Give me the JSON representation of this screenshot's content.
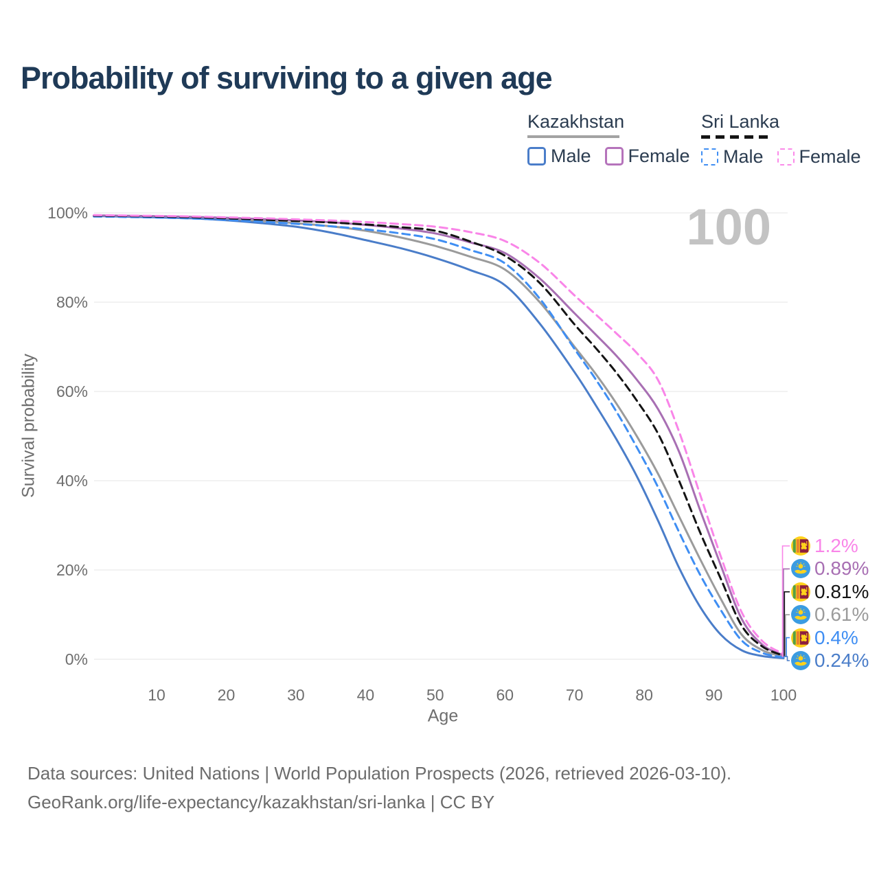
{
  "title": "Probability of surviving to a given age",
  "watermark": "100",
  "legend": {
    "groups": [
      {
        "key": "kazakhstan",
        "label": "Kazakhstan",
        "line": "solid",
        "items": [
          {
            "key": "kz_male",
            "label": "Male",
            "color": "#4a7dc9",
            "line": "solid"
          },
          {
            "key": "kz_female",
            "label": "Female",
            "color": "#b573bb",
            "line": "solid"
          }
        ]
      },
      {
        "key": "sri_lanka",
        "label": "Sri Lanka",
        "line": "dashed",
        "items": [
          {
            "key": "sl_male",
            "label": "Male",
            "color": "#3f8ef3",
            "line": "dashed"
          },
          {
            "key": "sl_female",
            "label": "Female",
            "color": "#fb8ae9",
            "line": "dashed"
          }
        ]
      }
    ]
  },
  "chart_data": {
    "type": "line",
    "title": "Probability of surviving to a given age",
    "xlabel": "Age",
    "ylabel": "Survival probability",
    "xlim": [
      1,
      100
    ],
    "ylim": [
      0,
      100
    ],
    "grid": "horizontal",
    "xticks": [
      10,
      20,
      30,
      40,
      50,
      60,
      70,
      80,
      90,
      100
    ],
    "yticks": [
      {
        "value": 0,
        "label": "0%"
      },
      {
        "value": 20,
        "label": "20%"
      },
      {
        "value": 40,
        "label": "40%"
      },
      {
        "value": 60,
        "label": "60%"
      },
      {
        "value": 80,
        "label": "80%"
      },
      {
        "value": 100,
        "label": "100%"
      }
    ],
    "x": [
      1,
      5,
      10,
      15,
      20,
      25,
      30,
      35,
      40,
      45,
      50,
      55,
      60,
      65,
      70,
      73,
      76,
      79,
      82,
      85,
      88,
      91,
      94,
      97,
      100
    ],
    "series": [
      {
        "key": "kz_total",
        "name": "Kazakhstan (both sexes)",
        "country": "Kazakhstan",
        "line": "solid",
        "color": "#9b9b9b",
        "end_label": "0.61%",
        "values": [
          99.36,
          99.27,
          99.12,
          98.95,
          98.6,
          98.2,
          97.7,
          97.0,
          96.0,
          94.5,
          92.6,
          90.2,
          87.3,
          80.0,
          70.0,
          64.0,
          57.3,
          49.8,
          41.5,
          32.0,
          22.5,
          13.5,
          5.5,
          2.0,
          0.61
        ]
      },
      {
        "key": "kz_male",
        "name": "Kazakhstan Male",
        "country": "Kazakhstan",
        "line": "solid",
        "color": "#4a7dc9",
        "end_label": "0.24%",
        "values": [
          99.3,
          99.18,
          99.0,
          98.78,
          98.35,
          97.72,
          96.9,
          95.6,
          93.9,
          92.1,
          89.9,
          87.2,
          83.8,
          75.2,
          64.3,
          57.0,
          49.3,
          40.8,
          31.0,
          20.5,
          11.8,
          5.5,
          2.0,
          0.7,
          0.24
        ]
      },
      {
        "key": "kz_female",
        "name": "Kazakhstan Female",
        "country": "Kazakhstan",
        "line": "solid",
        "color": "#a86fb3",
        "end_label": "0.89%",
        "values": [
          99.45,
          99.37,
          99.27,
          99.12,
          98.9,
          98.62,
          98.3,
          97.9,
          97.3,
          96.5,
          95.4,
          93.4,
          91.0,
          85.3,
          77.5,
          72.8,
          68.0,
          62.5,
          56.0,
          46.5,
          33.5,
          21.0,
          9.0,
          3.2,
          0.89
        ]
      },
      {
        "key": "sl_male",
        "name": "Sri Lanka Male",
        "country": "Sri Lanka",
        "line": "dashed",
        "color": "#3f8ef3",
        "end_label": "0.4%",
        "values": [
          99.2,
          99.1,
          98.95,
          98.75,
          98.42,
          98.02,
          97.55,
          97.0,
          96.3,
          95.4,
          94.1,
          91.7,
          88.7,
          80.8,
          69.5,
          62.8,
          55.5,
          47.3,
          38.5,
          28.5,
          19.0,
          11.0,
          4.2,
          1.4,
          0.4
        ]
      },
      {
        "key": "sl_total",
        "name": "Sri Lanka (both sexes)",
        "country": "Sri Lanka",
        "line": "dashed",
        "color": "#141414",
        "end_label": "0.81%",
        "values": [
          99.38,
          99.3,
          99.18,
          99.02,
          98.78,
          98.5,
          98.2,
          97.85,
          97.4,
          96.8,
          96.0,
          93.6,
          90.4,
          84.3,
          75.0,
          69.8,
          64.2,
          57.8,
          50.5,
          40.0,
          28.5,
          18.0,
          7.5,
          2.8,
          0.81
        ]
      },
      {
        "key": "sl_female",
        "name": "Sri Lanka Female",
        "country": "Sri Lanka",
        "line": "dashed",
        "color": "#f985e8",
        "end_label": "1.2%",
        "values": [
          99.5,
          99.42,
          99.32,
          99.2,
          99.0,
          98.8,
          98.55,
          98.3,
          97.95,
          97.5,
          96.9,
          95.7,
          93.7,
          88.8,
          81.5,
          77.3,
          73.0,
          68.5,
          62.5,
          51.0,
          37.0,
          23.0,
          10.5,
          4.0,
          1.2
        ]
      }
    ],
    "end_labels": [
      {
        "series": "sl_female",
        "flag": "sri-lanka",
        "label": "1.2%"
      },
      {
        "series": "kz_female",
        "flag": "kazakhstan",
        "label": "0.89%"
      },
      {
        "series": "sl_total",
        "flag": "sri-lanka",
        "label": "0.81%"
      },
      {
        "series": "kz_total",
        "flag": "kazakhstan",
        "label": "0.61%"
      },
      {
        "series": "sl_male",
        "flag": "sri-lanka",
        "label": "0.4%"
      },
      {
        "series": "kz_male",
        "flag": "kazakhstan",
        "label": "0.24%"
      }
    ]
  },
  "footer": {
    "line1": "Data sources: United Nations | World Population Prospects (2026, retrieved 2026-03-10).",
    "line2": "GeoRank.org/life-expectancy/kazakhstan/sri-lanka | CC BY"
  }
}
